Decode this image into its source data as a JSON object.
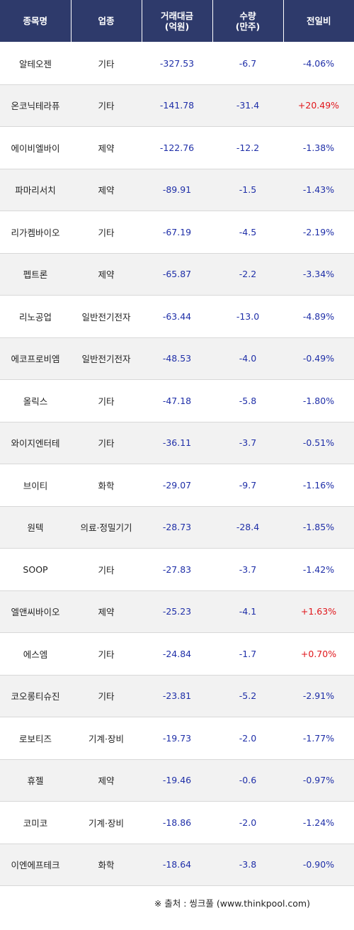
{
  "table": {
    "headers": [
      {
        "line1": "종목명",
        "line2": ""
      },
      {
        "line1": "업종",
        "line2": ""
      },
      {
        "line1": "거래대금",
        "line2": "(억원)"
      },
      {
        "line1": "수량",
        "line2": "(만주)"
      },
      {
        "line1": "전일비",
        "line2": ""
      }
    ],
    "rows": [
      {
        "name": "알테오젠",
        "sector": "기타",
        "amount": "-327.53",
        "qty": "-6.7",
        "change": "-4.06%",
        "dir": "down"
      },
      {
        "name": "온코닉테라퓨",
        "sector": "기타",
        "amount": "-141.78",
        "qty": "-31.4",
        "change": "+20.49%",
        "dir": "up"
      },
      {
        "name": "에이비엘바이",
        "sector": "제약",
        "amount": "-122.76",
        "qty": "-12.2",
        "change": "-1.38%",
        "dir": "down"
      },
      {
        "name": "파마리서치",
        "sector": "제약",
        "amount": "-89.91",
        "qty": "-1.5",
        "change": "-1.43%",
        "dir": "down"
      },
      {
        "name": "리가켐바이오",
        "sector": "기타",
        "amount": "-67.19",
        "qty": "-4.5",
        "change": "-2.19%",
        "dir": "down"
      },
      {
        "name": "펩트론",
        "sector": "제약",
        "amount": "-65.87",
        "qty": "-2.2",
        "change": "-3.34%",
        "dir": "down"
      },
      {
        "name": "리노공업",
        "sector": "일반전기전자",
        "amount": "-63.44",
        "qty": "-13.0",
        "change": "-4.89%",
        "dir": "down"
      },
      {
        "name": "에코프로비엠",
        "sector": "일반전기전자",
        "amount": "-48.53",
        "qty": "-4.0",
        "change": "-0.49%",
        "dir": "down"
      },
      {
        "name": "올릭스",
        "sector": "기타",
        "amount": "-47.18",
        "qty": "-5.8",
        "change": "-1.80%",
        "dir": "down"
      },
      {
        "name": "와이지엔터테",
        "sector": "기타",
        "amount": "-36.11",
        "qty": "-3.7",
        "change": "-0.51%",
        "dir": "down"
      },
      {
        "name": "브이티",
        "sector": "화학",
        "amount": "-29.07",
        "qty": "-9.7",
        "change": "-1.16%",
        "dir": "down"
      },
      {
        "name": "원텍",
        "sector": "의료·정밀기기",
        "amount": "-28.73",
        "qty": "-28.4",
        "change": "-1.85%",
        "dir": "down"
      },
      {
        "name": "SOOP",
        "sector": "기타",
        "amount": "-27.83",
        "qty": "-3.7",
        "change": "-1.42%",
        "dir": "down"
      },
      {
        "name": "엘앤씨바이오",
        "sector": "제약",
        "amount": "-25.23",
        "qty": "-4.1",
        "change": "+1.63%",
        "dir": "up"
      },
      {
        "name": "에스엠",
        "sector": "기타",
        "amount": "-24.84",
        "qty": "-1.7",
        "change": "+0.70%",
        "dir": "up"
      },
      {
        "name": "코오롱티슈진",
        "sector": "기타",
        "amount": "-23.81",
        "qty": "-5.2",
        "change": "-2.91%",
        "dir": "down"
      },
      {
        "name": "로보티즈",
        "sector": "기계·장비",
        "amount": "-19.73",
        "qty": "-2.0",
        "change": "-1.77%",
        "dir": "down"
      },
      {
        "name": "휴젤",
        "sector": "제약",
        "amount": "-19.46",
        "qty": "-0.6",
        "change": "-0.97%",
        "dir": "down"
      },
      {
        "name": "코미코",
        "sector": "기계·장비",
        "amount": "-18.86",
        "qty": "-2.0",
        "change": "-1.24%",
        "dir": "down"
      },
      {
        "name": "이엔에프테크",
        "sector": "화학",
        "amount": "-18.64",
        "qty": "-3.8",
        "change": "-0.90%",
        "dir": "down"
      }
    ]
  },
  "footer": {
    "source": "※ 출처 : 씽크풀 (www.thinkpool.com)"
  },
  "colors": {
    "header_bg": "#2e3a6b",
    "negative": "#1f2fa8",
    "positive": "#e0161b"
  }
}
